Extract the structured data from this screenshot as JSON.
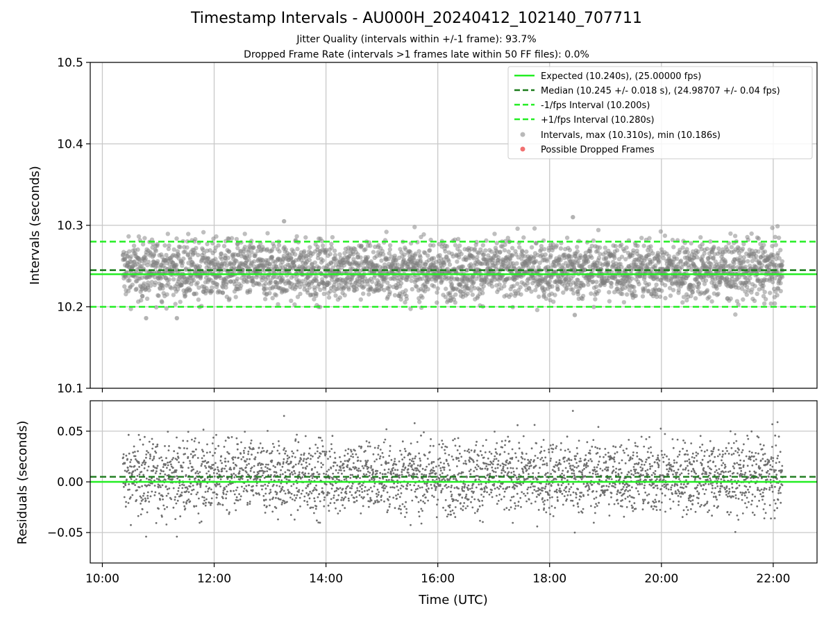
{
  "header": {
    "title": "Timestamp Intervals - AU000H_20240412_102140_707711",
    "subtitle_jitter": "Jitter Quality (intervals within +/-1 frame): 93.7%",
    "subtitle_dropped": "Dropped Frame Rate (intervals >1 frames late within 50 FF files): 0.0%"
  },
  "colors": {
    "expected": "#22ee22",
    "median": "#1a7a1a",
    "interval_bounds": "#22ee22",
    "points": "#808080",
    "residual_points": "#6e6e6e",
    "dropped": "#f06060",
    "grid": "#c8c8c8"
  },
  "chart_data": [
    {
      "type": "scatter",
      "name": "intervals",
      "xlabel": "",
      "ylabel": "Intervals (seconds)",
      "xlim": [
        "09:47",
        "22:47"
      ],
      "ylim": [
        10.1,
        10.5
      ],
      "yticks": [
        "10.1",
        "10.2",
        "10.3",
        "10.4",
        "10.5"
      ],
      "grid": true,
      "legend_position": "top-right",
      "reference_lines": [
        {
          "name": "Expected (10.240s), (25.00000 fps)",
          "y": 10.24,
          "style": "solid",
          "color": "#22ee22"
        },
        {
          "name": "Median (10.245 +/- 0.018 s), (24.98707 +/- 0.04 fps)",
          "y": 10.245,
          "style": "dashed",
          "color": "#1a7a1a"
        },
        {
          "name": "-1/fps Interval (10.200s)",
          "y": 10.2,
          "style": "dashed",
          "color": "#22ee22"
        },
        {
          "name": "+1/fps Interval (10.280s)",
          "y": 10.28,
          "style": "dashed",
          "color": "#22ee22"
        }
      ],
      "series": [
        {
          "name": "Intervals, max (10.310s), min (10.186s)",
          "marker": "circle",
          "color": "#808080",
          "x_range": [
            "10:22",
            "22:10"
          ],
          "y_center": 10.245,
          "y_min": 10.186,
          "y_max": 10.31
        },
        {
          "name": "Possible Dropped Frames",
          "marker": "circle",
          "color": "#f06060",
          "values": []
        }
      ]
    },
    {
      "type": "scatter",
      "name": "residuals",
      "xlabel": "Time (UTC)",
      "ylabel": "Residuals (seconds)",
      "xlim": [
        "09:47",
        "22:47"
      ],
      "ylim": [
        -0.08,
        0.08
      ],
      "yticks": [
        "0.05",
        "0.00",
        "−0.05"
      ],
      "xticks": [
        "10:00",
        "12:00",
        "14:00",
        "16:00",
        "18:00",
        "20:00",
        "22:00"
      ],
      "grid": true,
      "reference_lines": [
        {
          "y": 0.0,
          "style": "solid",
          "color": "#22ee22"
        },
        {
          "y": 0.005,
          "style": "dashed",
          "color": "#1a7a1a"
        }
      ],
      "series": [
        {
          "name": "residuals",
          "color": "#6e6e6e",
          "x_range": [
            "10:22",
            "22:10"
          ],
          "y_center": 0.005,
          "y_min": -0.054,
          "y_max": 0.07
        }
      ]
    }
  ]
}
